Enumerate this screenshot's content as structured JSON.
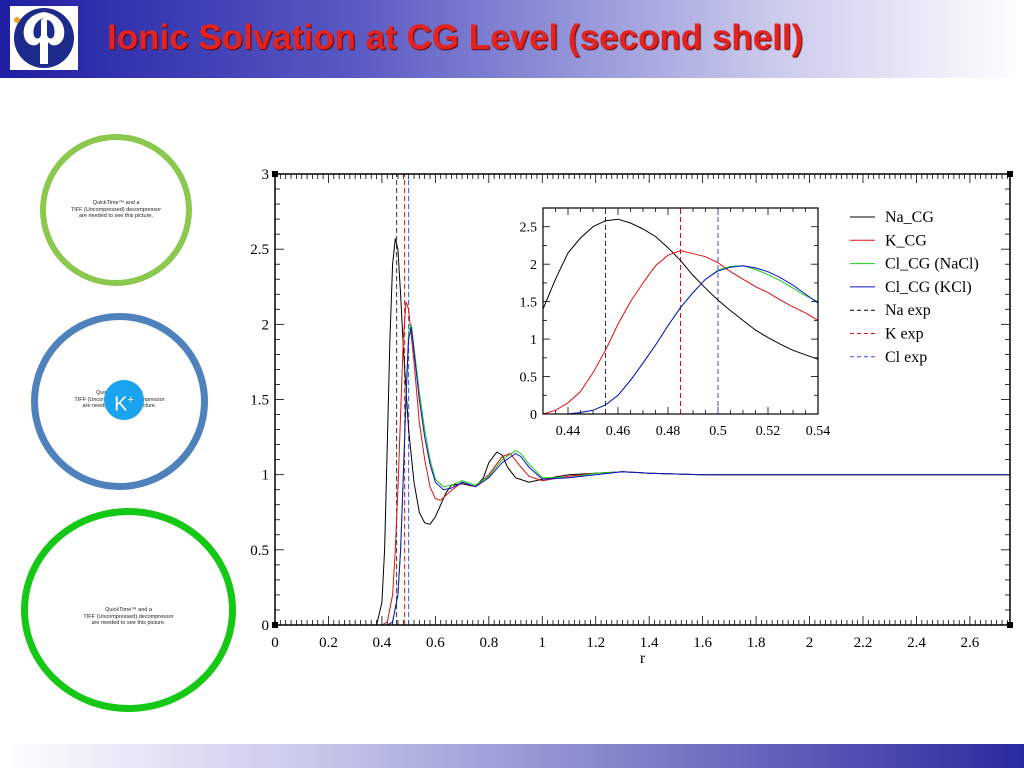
{
  "slide": {
    "title": "Ionic Solvation at CG Level (second shell)",
    "title_color": "#e2231f",
    "header_gradient": [
      "#1f1fa3",
      "#ffffff"
    ],
    "logo_icon": "university-logo-icon"
  },
  "figures": [
    {
      "text": [
        "QuickTime™ and a",
        "TIFF (Uncompressed) decompressor",
        "are needed to see this picture."
      ],
      "ring_color": "#8ac84e"
    },
    {
      "text": [
        "QuickTime™ and a",
        "TIFF (Uncompressed) decompressor",
        "are needed to see this picture."
      ],
      "ring_color": "#4f81bd",
      "ion_label": "K",
      "ion_charge": "+"
    },
    {
      "text": [
        "QuickTime™ and a",
        "TIFF (Uncompressed) decompressor",
        "are needed to see this picture."
      ],
      "ring_color": "#16c816"
    }
  ],
  "chart_data": {
    "type": "line",
    "xlabel": "r",
    "ylabel": "",
    "xlim": [
      0,
      2.75
    ],
    "ylim": [
      0,
      3
    ],
    "xticks": [
      "0",
      "0.2",
      "0.4",
      "0.6",
      "0.8",
      "1",
      "1.2",
      "1.4",
      "1.6",
      "1.8",
      "2",
      "2.2",
      "2.4",
      "2.6"
    ],
    "yticks": [
      "0",
      "0.5",
      "1",
      "1.5",
      "2",
      "2.5",
      "3"
    ],
    "series": [
      {
        "name": "Na_CG",
        "color": "#000000",
        "style": "solid",
        "x": [
          0.36,
          0.38,
          0.4,
          0.41,
          0.42,
          0.43,
          0.44,
          0.45,
          0.46,
          0.47,
          0.48,
          0.5,
          0.52,
          0.54,
          0.56,
          0.58,
          0.6,
          0.62,
          0.64,
          0.66,
          0.7,
          0.75,
          0.78,
          0.8,
          0.83,
          0.85,
          0.87,
          0.9,
          0.95,
          1.0,
          1.1,
          1.2,
          1.3,
          1.4,
          1.6,
          2.0,
          2.75
        ],
        "y": [
          0.0,
          0.0,
          0.15,
          0.5,
          1.2,
          1.9,
          2.4,
          2.57,
          2.5,
          2.2,
          1.85,
          1.3,
          0.95,
          0.75,
          0.68,
          0.67,
          0.72,
          0.8,
          0.88,
          0.93,
          0.94,
          0.92,
          0.98,
          1.08,
          1.15,
          1.13,
          1.05,
          0.98,
          0.95,
          0.97,
          1.0,
          1.01,
          1.02,
          1.01,
          1.0,
          1.0,
          1.0
        ]
      },
      {
        "name": "K_CG",
        "color": "#e01010",
        "style": "solid",
        "x": [
          0.4,
          0.42,
          0.44,
          0.45,
          0.46,
          0.47,
          0.48,
          0.49,
          0.5,
          0.52,
          0.54,
          0.56,
          0.58,
          0.6,
          0.62,
          0.65,
          0.7,
          0.75,
          0.8,
          0.85,
          0.88,
          0.92,
          0.95,
          1.0,
          1.1,
          1.2,
          1.3,
          1.4,
          1.6,
          2.0,
          2.75
        ],
        "y": [
          0.0,
          0.02,
          0.2,
          0.5,
          0.9,
          1.4,
          1.9,
          2.15,
          2.1,
          1.75,
          1.35,
          1.1,
          0.92,
          0.84,
          0.83,
          0.88,
          0.95,
          0.92,
          1.0,
          1.12,
          1.14,
          1.05,
          0.99,
          0.96,
          0.99,
          1.01,
          1.02,
          1.01,
          1.0,
          1.0,
          1.0
        ]
      },
      {
        "name": "Cl_CG (NaCl)",
        "color": "#10d010",
        "style": "solid",
        "x": [
          0.42,
          0.44,
          0.46,
          0.47,
          0.48,
          0.49,
          0.5,
          0.51,
          0.52,
          0.54,
          0.56,
          0.58,
          0.6,
          0.63,
          0.66,
          0.7,
          0.75,
          0.8,
          0.85,
          0.9,
          0.92,
          0.95,
          1.0,
          1.1,
          1.2,
          1.3,
          1.4,
          1.6,
          2.0,
          2.75
        ],
        "y": [
          0.0,
          0.02,
          0.2,
          0.5,
          1.0,
          1.55,
          1.95,
          2.0,
          1.85,
          1.55,
          1.3,
          1.1,
          0.97,
          0.92,
          0.93,
          0.96,
          0.93,
          0.99,
          1.1,
          1.16,
          1.14,
          1.07,
          0.98,
          0.98,
          1.01,
          1.02,
          1.01,
          1.0,
          1.0,
          1.0
        ]
      },
      {
        "name": "Cl_CG (KCl)",
        "color": "#1010d0",
        "style": "solid",
        "x": [
          0.42,
          0.44,
          0.46,
          0.47,
          0.48,
          0.49,
          0.5,
          0.51,
          0.52,
          0.54,
          0.56,
          0.58,
          0.6,
          0.63,
          0.66,
          0.7,
          0.75,
          0.8,
          0.85,
          0.9,
          0.92,
          0.95,
          1.0,
          1.1,
          1.2,
          1.3,
          1.4,
          1.6,
          2.0,
          2.75
        ],
        "y": [
          0.0,
          0.02,
          0.2,
          0.5,
          0.98,
          1.5,
          1.9,
          1.98,
          1.82,
          1.5,
          1.25,
          1.07,
          0.95,
          0.9,
          0.91,
          0.95,
          0.92,
          0.98,
          1.08,
          1.14,
          1.12,
          1.05,
          0.97,
          0.98,
          1.0,
          1.02,
          1.01,
          1.0,
          1.0,
          1.0
        ]
      }
    ],
    "vlines": [
      {
        "name": "Na exp",
        "x": 0.455,
        "color": "#333333"
      },
      {
        "name": "K exp",
        "x": 0.485,
        "color": "#e01010"
      },
      {
        "name": "Cl exp",
        "x": 0.5,
        "color": "#3050e0"
      }
    ],
    "inset": {
      "xlim": [
        0.43,
        0.54
      ],
      "ylim": [
        0,
        2.75
      ],
      "xticks": [
        "0.44",
        "0.46",
        "0.48",
        "0.5",
        "0.52",
        "0.54"
      ],
      "yticks": [
        "0",
        "0.5",
        "1",
        "1.5",
        "2",
        "2.5"
      ],
      "series": [
        {
          "name": "Na_CG",
          "x": [
            0.43,
            0.435,
            0.44,
            0.445,
            0.45,
            0.455,
            0.46,
            0.465,
            0.47,
            0.475,
            0.48,
            0.485,
            0.49,
            0.495,
            0.5,
            0.505,
            0.51,
            0.515,
            0.52,
            0.525,
            0.53,
            0.535,
            0.54
          ],
          "y": [
            1.4,
            1.8,
            2.15,
            2.35,
            2.5,
            2.58,
            2.6,
            2.55,
            2.47,
            2.37,
            2.22,
            2.05,
            1.85,
            1.68,
            1.52,
            1.38,
            1.25,
            1.12,
            1.02,
            0.93,
            0.85,
            0.79,
            0.73
          ]
        },
        {
          "name": "K_CG",
          "x": [
            0.43,
            0.435,
            0.44,
            0.445,
            0.45,
            0.455,
            0.46,
            0.465,
            0.47,
            0.475,
            0.48,
            0.485,
            0.49,
            0.495,
            0.5,
            0.505,
            0.51,
            0.515,
            0.52,
            0.525,
            0.53,
            0.535,
            0.54
          ],
          "y": [
            0.0,
            0.05,
            0.15,
            0.3,
            0.55,
            0.85,
            1.2,
            1.5,
            1.75,
            1.98,
            2.12,
            2.18,
            2.14,
            2.1,
            2.02,
            1.9,
            1.8,
            1.7,
            1.62,
            1.52,
            1.43,
            1.35,
            1.25
          ]
        },
        {
          "name": "Cl_CG (NaCl)",
          "x": [
            0.44,
            0.445,
            0.45,
            0.455,
            0.46,
            0.465,
            0.47,
            0.475,
            0.48,
            0.485,
            0.49,
            0.495,
            0.5,
            0.505,
            0.51,
            0.515,
            0.52,
            0.525,
            0.53,
            0.535,
            0.54
          ],
          "y": [
            0.0,
            0.02,
            0.05,
            0.12,
            0.25,
            0.45,
            0.68,
            0.92,
            1.18,
            1.42,
            1.62,
            1.8,
            1.92,
            1.97,
            1.98,
            1.93,
            1.86,
            1.78,
            1.68,
            1.58,
            1.5
          ]
        },
        {
          "name": "Cl_CG (KCl)",
          "x": [
            0.44,
            0.445,
            0.45,
            0.455,
            0.46,
            0.465,
            0.47,
            0.475,
            0.48,
            0.485,
            0.49,
            0.495,
            0.5,
            0.505,
            0.51,
            0.515,
            0.52,
            0.525,
            0.53,
            0.535,
            0.54
          ],
          "y": [
            0.0,
            0.02,
            0.05,
            0.12,
            0.25,
            0.45,
            0.68,
            0.92,
            1.18,
            1.42,
            1.62,
            1.8,
            1.91,
            1.96,
            1.98,
            1.95,
            1.9,
            1.82,
            1.72,
            1.6,
            1.48
          ]
        }
      ],
      "vlines": [
        0.455,
        0.485,
        0.5
      ]
    },
    "legend": [
      {
        "label": "Na_CG",
        "color": "#000000",
        "style": "solid"
      },
      {
        "label": "K_CG",
        "color": "#e01010",
        "style": "solid"
      },
      {
        "label": "Cl_CG (NaCl)",
        "color": "#10d010",
        "style": "solid"
      },
      {
        "label": "Cl_CG (KCl)",
        "color": "#1010d0",
        "style": "solid"
      },
      {
        "label": "Na exp",
        "color": "#000000",
        "style": "dashed"
      },
      {
        "label": "K exp",
        "color": "#e01010",
        "style": "dashed"
      },
      {
        "label": "Cl exp",
        "color": "#3050e0",
        "style": "dashed"
      }
    ],
    "legend_position": "top-right",
    "grid": false
  }
}
